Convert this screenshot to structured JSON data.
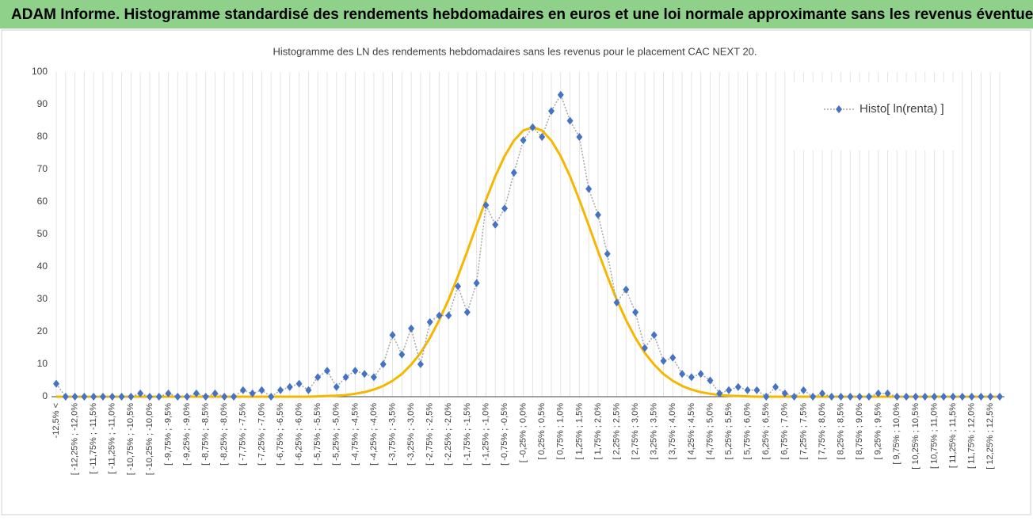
{
  "chart_data": {
    "type": "line",
    "title": "ADAM Informe. Histogramme standardisé des rendements hebdomadaires en euros et une loi normale approximante sans les revenus éventuels",
    "subtitle": "Histogramme des LN des rendements hebdomadaires sans les revenus pour le placement CAC NEXT 20.",
    "categories": [
      "-12,5% <",
      null,
      "[ -12,25% ; -12,0%",
      null,
      "[ -11,75% ; -11,5%",
      null,
      "[ -11,25% ; -11,0%",
      null,
      "[ -10,75% ; -10,5%",
      null,
      "[ -10,25% ; -10,0%",
      null,
      "[ -9,75% ; -9,5%",
      null,
      "[ -9,25% ; -9,0%",
      null,
      "[ -8,75% ; -8,5%",
      null,
      "[ -8,25% ; -8,0%",
      null,
      "[ -7,75% ; -7,5%",
      null,
      "[ -7,25% ; -7,0%",
      null,
      "[ -6,75% ; -6,5%",
      null,
      "[ -6,25% ; -6,0%",
      null,
      "[ -5,75% ; -5,5%",
      null,
      "[ -5,25% ; -5,0%",
      null,
      "[ -4,75% ; -4,5%",
      null,
      "[ -4,25% ; -4,0%",
      null,
      "[ -3,75% ; -3,5%",
      null,
      "[ -3,25% ; -3,0%",
      null,
      "[ -2,75% ; -2,5%",
      null,
      "[ -2,25% ; -2,0%",
      null,
      "[ -1,75% ; -1,5%",
      null,
      "[ -1,25% ; -1,0%",
      null,
      "[ -0,75% ; -0,5%",
      null,
      "[ -0,25% ; 0,0%",
      null,
      "[ 0,25% ; 0,5%",
      null,
      "[ 0,75% ; 1,0%",
      null,
      "[ 1,25% ; 1,5%",
      null,
      "[ 1,75% ; 2,0%",
      null,
      "[ 2,25% ; 2,5%",
      null,
      "[ 2,75% ; 3,0%",
      null,
      "[ 3,25% ; 3,5%",
      null,
      "[ 3,75% ; 4,0%",
      null,
      "[ 4,25% ; 4,5%",
      null,
      "[ 4,75% ; 5,0%",
      null,
      "[ 5,25% ; 5,5%",
      null,
      "[ 5,75% ; 6,0%",
      null,
      "[ 6,25% ; 6,5%",
      null,
      "[ 6,75% ; 7,0%",
      null,
      "[ 7,25% ; 7,5%",
      null,
      "[ 7,75% ; 8,0%",
      null,
      "[ 8,25% ; 8,5%",
      null,
      "[ 8,75% ; 9,0%",
      null,
      "[ 9,25% ; 9,5%",
      null,
      "[ 9,75% ; 10,0%",
      null,
      "[ 10,25% ; 10,5%",
      null,
      "[ 10,75% ; 11,0%",
      null,
      "[ 11,25% ; 11,5%",
      null,
      "[ 11,75% ; 12,0%",
      null,
      "[ 12,25% ; 12,5%",
      null
    ],
    "series": [
      {
        "name": "Histo[ ln(renta) ]",
        "color": "#4472c4",
        "line_color": "#a6a6a6",
        "values": [
          4,
          0,
          0,
          0,
          0,
          0,
          0,
          0,
          0,
          1,
          0,
          0,
          1,
          0,
          0,
          1,
          0,
          1,
          0,
          0,
          2,
          1,
          2,
          0,
          2,
          3,
          4,
          2,
          6,
          8,
          3,
          6,
          8,
          7,
          6,
          10,
          19,
          13,
          21,
          10,
          23,
          25,
          25,
          34,
          26,
          35,
          59,
          53,
          58,
          69,
          79,
          83,
          80,
          88,
          93,
          85,
          80,
          64,
          56,
          44,
          29,
          33,
          26,
          15,
          19,
          11,
          12,
          7,
          6,
          7,
          5,
          1,
          2,
          3,
          2,
          2,
          0,
          3,
          1,
          0,
          2,
          0,
          1,
          0,
          0,
          0,
          0,
          0,
          1,
          1,
          0,
          0,
          0,
          0,
          0,
          0,
          0,
          0,
          0,
          0,
          0,
          0
        ]
      },
      {
        "color": "#f5b700",
        "values": [
          0,
          0,
          0,
          0,
          0,
          0,
          0,
          0,
          0,
          0,
          0,
          0,
          0,
          0,
          0,
          0,
          0,
          0,
          0,
          0,
          0,
          0,
          0,
          0,
          0,
          0,
          0,
          0,
          0.1,
          0.2,
          0.3,
          0.5,
          0.9,
          1.4,
          2.2,
          3.3,
          4.9,
          7.0,
          9.9,
          13.5,
          18.1,
          23.6,
          29.9,
          37.1,
          44.8,
          52.8,
          60.6,
          67.9,
          74.1,
          78.9,
          82.0,
          83,
          82.0,
          78.9,
          74.1,
          67.9,
          60.6,
          52.8,
          44.8,
          37.1,
          29.9,
          23.6,
          18.1,
          13.5,
          9.9,
          7.0,
          4.9,
          3.3,
          2.2,
          1.4,
          0.9,
          0.5,
          0.3,
          0.2,
          0.1,
          0,
          0,
          0,
          0,
          0,
          0,
          0,
          0,
          0,
          0,
          0,
          0,
          0,
          0,
          0,
          0,
          0,
          0,
          0,
          0,
          0,
          0,
          0,
          0,
          0,
          0,
          0
        ]
      }
    ],
    "ylim": [
      0,
      100
    ],
    "yticks": [
      0,
      10,
      20,
      30,
      40,
      50,
      60,
      70,
      80,
      90,
      100
    ],
    "grid": true,
    "legend": "upper right"
  }
}
